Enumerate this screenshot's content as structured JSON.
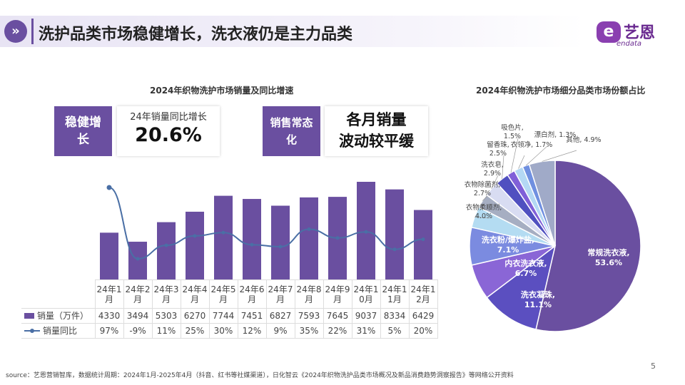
{
  "header": {
    "icon": "double-chevron-right-icon",
    "title": "洗护品类市场稳健增长，洗衣液仍是主力品类"
  },
  "logo": {
    "cn": "艺恩",
    "en": "endata",
    "mark": "e"
  },
  "left": {
    "title": "2024年织物洗护市场销量及同比增速",
    "badge1": "稳健增长",
    "card1_label": "24年销量同比增长",
    "card1_value": "20.6%",
    "badge2": "销售常态化",
    "card2_line1": "各月销量",
    "card2_line2": "波动较平缓"
  },
  "right": {
    "title": "2024年织物洗护市场细分品类市场份额占比"
  },
  "chart_data": [
    {
      "type": "bar",
      "categories": [
        "24年1月",
        "24年2月",
        "24年3月",
        "24年4月",
        "24年5月",
        "24年6月",
        "24年7月",
        "24年8月",
        "24年9月",
        "24年10月",
        "24年11月",
        "24年12月"
      ],
      "series": [
        {
          "name": "销量（万件）",
          "type": "bar",
          "color": "#6a4fa0",
          "values": [
            4330,
            3494,
            5303,
            6270,
            7744,
            7451,
            6827,
            7593,
            7645,
            9037,
            8334,
            6429
          ]
        },
        {
          "name": "销量同比",
          "type": "line",
          "color": "#4a6fa5",
          "values": [
            97,
            -9,
            11,
            25,
            30,
            12,
            9,
            35,
            22,
            31,
            5,
            20
          ],
          "labels": [
            "97%",
            "-9%",
            "11%",
            "25%",
            "30%",
            "12%",
            "9%",
            "35%",
            "22%",
            "31%",
            "5%",
            "20%"
          ]
        }
      ],
      "category_labels": [
        [
          "24年1",
          "月"
        ],
        [
          "24年2",
          "月"
        ],
        [
          "24年3",
          "月"
        ],
        [
          "24年4",
          "月"
        ],
        [
          "24年5",
          "月"
        ],
        [
          "24年6",
          "月"
        ],
        [
          "24年7",
          "月"
        ],
        [
          "24年8",
          "月"
        ],
        [
          "24年9",
          "月"
        ],
        [
          "24年1",
          "0月"
        ],
        [
          "24年1",
          "1月"
        ],
        [
          "24年1",
          "2月"
        ]
      ]
    },
    {
      "type": "pie",
      "slices": [
        {
          "name": "常规洗衣液",
          "value": 53.6,
          "label": "53.6%",
          "color": "#6a4fa0"
        },
        {
          "name": "洗衣凝珠",
          "value": 11.1,
          "label": "11.1%",
          "color": "#5b4fc0"
        },
        {
          "name": "内衣洗衣液",
          "value": 6.7,
          "label": "6.7%",
          "color": "#8a66d6"
        },
        {
          "name": "洗衣粉/爆炸盐",
          "value": 7.1,
          "label": "7.1%",
          "color": "#7b8be0"
        },
        {
          "name": "衣物柔顺剂",
          "value": 4.0,
          "label": "4.0%",
          "color": "#b4dcf2"
        },
        {
          "name": "衣物除菌剂",
          "value": 2.7,
          "label": "2.7%",
          "color": "#a6aec2"
        },
        {
          "name": "洗衣皂",
          "value": 2.9,
          "label": "2.9%",
          "color": "#d8dcf2"
        },
        {
          "name": "留香珠",
          "value": 2.5,
          "label": "2.5%",
          "color": "#5050c0"
        },
        {
          "name": "吸色片",
          "value": 1.5,
          "label": "1.5%",
          "color": "#8060d8"
        },
        {
          "name": "衣领净",
          "value": 1.7,
          "label": "1.7%",
          "color": "#b4d8f4"
        },
        {
          "name": "漂白剂",
          "value": 1.3,
          "label": "1.3%",
          "color": "#7090e0"
        },
        {
          "name": "其他",
          "value": 4.9,
          "label": "4.9%",
          "color": "#a0aac8"
        }
      ]
    }
  ],
  "footer": {
    "source": "source：艺恩营销智库，数据统计周期：2024年1月-2025年4月（抖音、红书等社媒渠道），日化智云《2024年织物洗护品类市场概况及新品消费趋势洞察报告》等网络公开资料",
    "page": "5"
  }
}
